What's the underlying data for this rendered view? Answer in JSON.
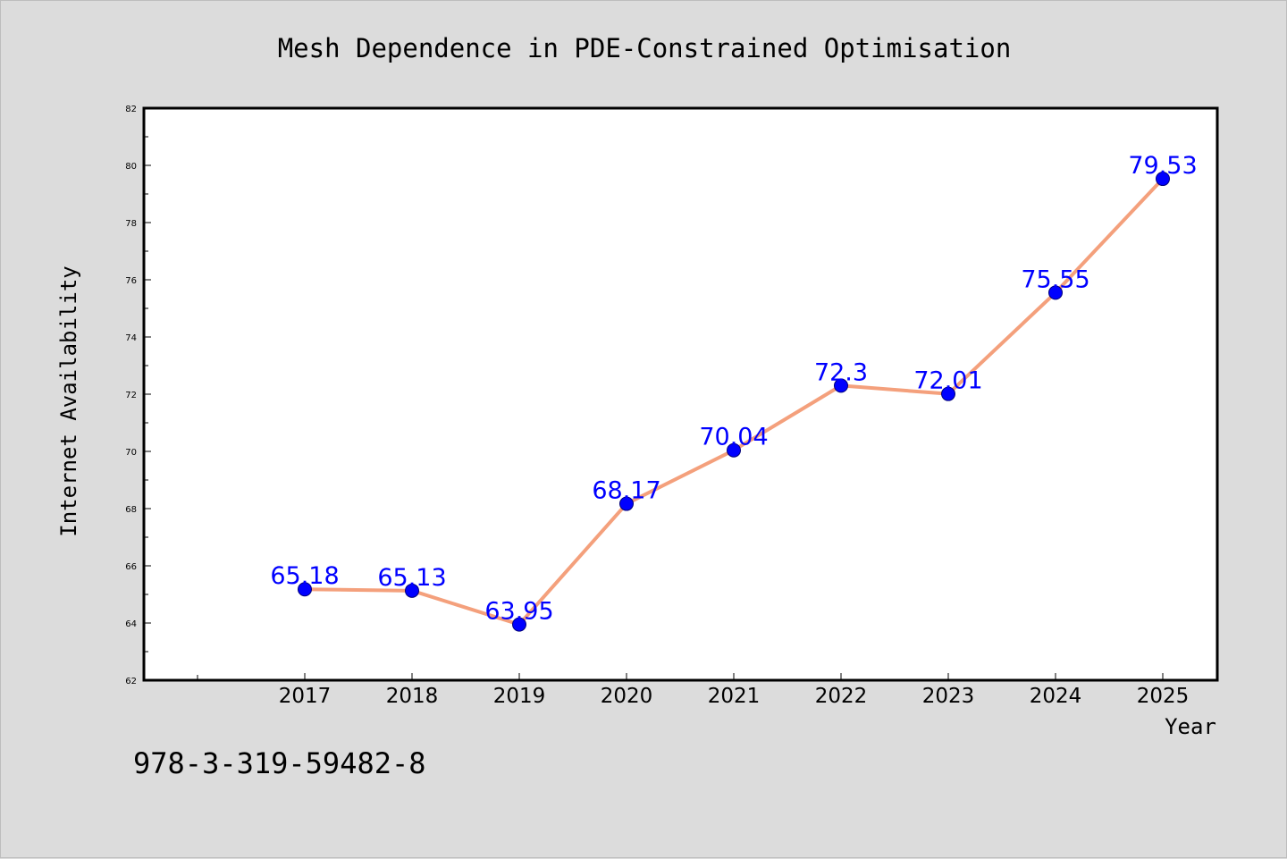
{
  "colors": {
    "background": "#dcdcdc",
    "plot_background": "#ffffff",
    "line": "#f4a07c",
    "marker": "#0000ff",
    "data_label": "#0000ff"
  },
  "footer": {
    "isbn": "978-3-319-59482-8"
  },
  "chart_data": {
    "type": "line",
    "title": "Mesh Dependence in PDE-Constrained Optimisation",
    "xlabel": "Year",
    "ylabel": "Internet Availability",
    "x": [
      "2017",
      "2018",
      "2019",
      "2020",
      "2021",
      "2022",
      "2023",
      "2024",
      "2025"
    ],
    "series": [
      {
        "values": [
          65.18,
          65.13,
          63.95,
          68.17,
          70.04,
          72.3,
          72.01,
          75.55,
          79.53
        ]
      }
    ],
    "data_labels": [
      "65.18",
      "65.13",
      "63.95",
      "68.17",
      "70.04",
      "72.3",
      "72.01",
      "75.55",
      "79.53"
    ],
    "ylim": [
      62,
      82
    ],
    "yticks": [
      62,
      64,
      66,
      68,
      70,
      72,
      74,
      76,
      78,
      80,
      82
    ],
    "ytick_labels": [
      "62",
      "64",
      "66",
      "68",
      "70",
      "72",
      "74",
      "76",
      "78",
      "80",
      "82"
    ],
    "grid": false,
    "legend": "none"
  }
}
